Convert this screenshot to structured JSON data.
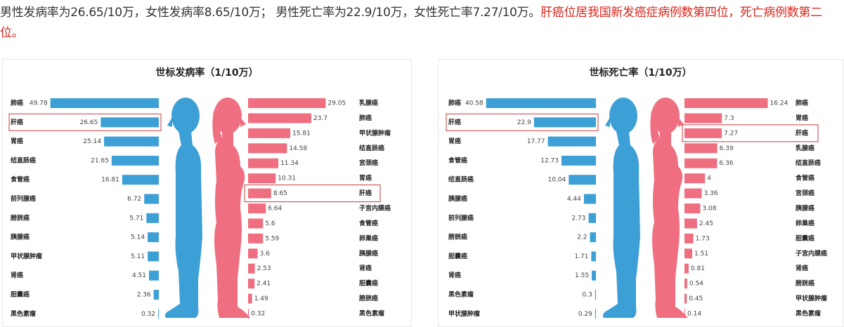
{
  "intro": {
    "text": "男性发病率为26.65/10万，女性发病率8.65/10万； 男性死亡率为22.9/10万，女性死亡率7.27/10万。",
    "highlight": "肝癌位居我国新发癌症病例数第四位，死亡病例数第二位。"
  },
  "colors": {
    "male": "#3ca0d6",
    "female": "#ef6f80",
    "highlight_box": "#c9393b",
    "intro_highlight": "#d7261e"
  },
  "chart_data": [
    {
      "type": "bar",
      "title": "世标发病率（1/10万）",
      "highlight": "肝癌",
      "male": {
        "categories": [
          "肺癌",
          "肝癌",
          "胃癌",
          "结直肠癌",
          "食管癌",
          "前列腺癌",
          "膀胱癌",
          "胰腺癌",
          "甲状腺肿瘤",
          "肾癌",
          "胆囊癌",
          "黑色素瘤"
        ],
        "values": [
          49.78,
          26.65,
          25.14,
          21.65,
          16.81,
          6.72,
          5.71,
          5.14,
          5.11,
          4.51,
          2.36,
          0.32
        ]
      },
      "female": {
        "categories": [
          "乳腺癌",
          "肺癌",
          "甲状腺肿瘤",
          "结直肠癌",
          "宫颈癌",
          "胃癌",
          "肝癌",
          "子宫内膜癌",
          "食管癌",
          "卵巢癌",
          "胰腺癌",
          "肾癌",
          "胆囊癌",
          "膀胱癌",
          "黑色素瘤"
        ],
        "values": [
          29.05,
          23.7,
          15.81,
          14.58,
          11.34,
          10.31,
          8.65,
          6.64,
          5.6,
          5.59,
          3.6,
          2.53,
          2.41,
          1.49,
          0.32
        ]
      }
    },
    {
      "type": "bar",
      "title": "世标死亡率（1/10万）",
      "highlight": "肝癌",
      "male": {
        "categories": [
          "肺癌",
          "肝癌",
          "胃癌",
          "食管癌",
          "结直肠癌",
          "胰腺癌",
          "前列腺癌",
          "膀胱癌",
          "胆囊癌",
          "肾癌",
          "黑色素瘤",
          "甲状腺肿瘤"
        ],
        "values": [
          40.58,
          22.9,
          17.77,
          12.73,
          10.04,
          4.44,
          2.73,
          2.2,
          1.71,
          1.55,
          0.3,
          0.29
        ]
      },
      "female": {
        "categories": [
          "肺癌",
          "胃癌",
          "肝癌",
          "乳腺癌",
          "结直肠癌",
          "食管癌",
          "宫颈癌",
          "胰腺癌",
          "卵巢癌",
          "胆囊癌",
          "子宫内膜癌",
          "肾癌",
          "膀胱癌",
          "甲状腺肿瘤",
          "黑色素瘤"
        ],
        "values": [
          16.24,
          7.3,
          7.27,
          6.39,
          6.36,
          4,
          3.36,
          3.08,
          2.45,
          1.73,
          1.51,
          0.81,
          0.54,
          0.45,
          0.14
        ]
      }
    }
  ]
}
